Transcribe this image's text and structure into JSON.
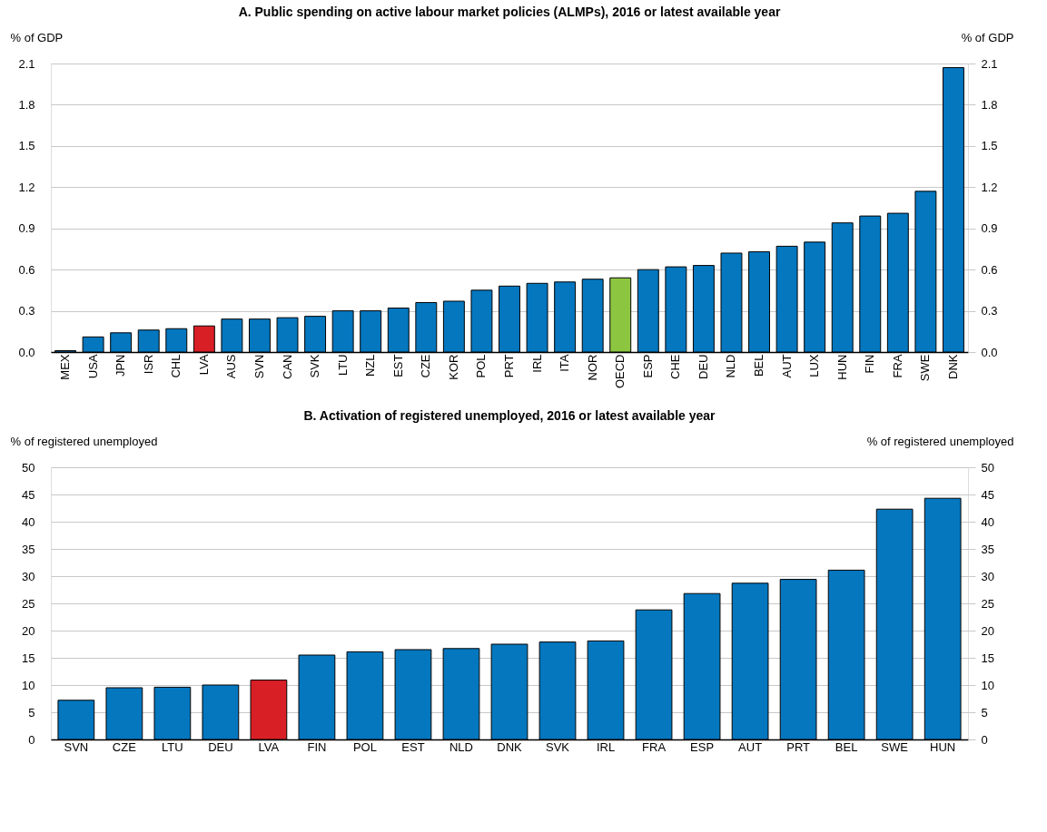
{
  "chart_data": [
    {
      "type": "bar",
      "title": "A. Public spending on active labour market policies (ALMPs), 2016 or latest available year",
      "ylabel": "% of GDP",
      "y2label": "% of GDP",
      "categories": [
        "MEX",
        "USA",
        "JPN",
        "ISR",
        "CHL",
        "LVA",
        "AUS",
        "SVN",
        "CAN",
        "SVK",
        "LTU",
        "NZL",
        "EST",
        "CZE",
        "KOR",
        "POL",
        "PRT",
        "IRL",
        "ITA",
        "NOR",
        "OECD",
        "ESP",
        "CHE",
        "DEU",
        "NLD",
        "BEL",
        "AUT",
        "LUX",
        "HUN",
        "FIN",
        "FRA",
        "SWE",
        "DNK"
      ],
      "values": [
        0.01,
        0.11,
        0.14,
        0.16,
        0.17,
        0.19,
        0.24,
        0.24,
        0.25,
        0.26,
        0.3,
        0.3,
        0.32,
        0.36,
        0.37,
        0.45,
        0.48,
        0.5,
        0.51,
        0.53,
        0.54,
        0.6,
        0.62,
        0.63,
        0.72,
        0.73,
        0.77,
        0.8,
        0.94,
        0.99,
        1.01,
        1.17,
        2.07
      ],
      "colors": [
        "#0477bf",
        "#0477bf",
        "#0477bf",
        "#0477bf",
        "#0477bf",
        "#d91f26",
        "#0477bf",
        "#0477bf",
        "#0477bf",
        "#0477bf",
        "#0477bf",
        "#0477bf",
        "#0477bf",
        "#0477bf",
        "#0477bf",
        "#0477bf",
        "#0477bf",
        "#0477bf",
        "#0477bf",
        "#0477bf",
        "#8cc641",
        "#0477bf",
        "#0477bf",
        "#0477bf",
        "#0477bf",
        "#0477bf",
        "#0477bf",
        "#0477bf",
        "#0477bf",
        "#0477bf",
        "#0477bf",
        "#0477bf",
        "#0477bf"
      ],
      "ylim": [
        0,
        2.1
      ],
      "yticks": [
        {
          "value": 0,
          "label": "0.0"
        },
        {
          "value": 0.3,
          "label": "0.3"
        },
        {
          "value": 0.6,
          "label": "0.6"
        },
        {
          "value": 0.9,
          "label": "0.9"
        },
        {
          "value": 1.2,
          "label": "1.2"
        },
        {
          "value": 1.5,
          "label": "1.5"
        },
        {
          "value": 1.8,
          "label": "1.8"
        },
        {
          "value": 2.1,
          "label": "2.1"
        }
      ],
      "y2lim": [
        0,
        2.1
      ],
      "y2ticks": [
        {
          "value": 0,
          "label": "0.0"
        },
        {
          "value": 0.3,
          "label": "0.3"
        },
        {
          "value": 0.6,
          "label": "0.6"
        },
        {
          "value": 0.9,
          "label": "0.9"
        },
        {
          "value": 1.2,
          "label": "1.2"
        },
        {
          "value": 1.5,
          "label": "1.5"
        },
        {
          "value": 1.8,
          "label": "1.8"
        },
        {
          "value": 2.1,
          "label": "2.1"
        }
      ],
      "grid": "y"
    },
    {
      "type": "bar",
      "title": "B. Activation of registered unemployed, 2016 or latest available year",
      "ylabel": "% of registered unemployed",
      "y2label": "% of registered unemployed",
      "categories": [
        "SVN",
        "CZE",
        "LTU",
        "DEU",
        "LVA",
        "FIN",
        "POL",
        "EST",
        "NLD",
        "DNK",
        "SVK",
        "IRL",
        "FRA",
        "ESP",
        "AUT",
        "PRT",
        "BEL",
        "SWE",
        "HUN"
      ],
      "values": [
        7.2,
        9.5,
        9.6,
        10.0,
        10.9,
        15.5,
        16.1,
        16.5,
        16.7,
        17.5,
        17.9,
        18.1,
        23.8,
        26.8,
        28.7,
        29.4,
        31.1,
        42.3,
        44.3
      ],
      "colors": [
        "#0477bf",
        "#0477bf",
        "#0477bf",
        "#0477bf",
        "#d91f26",
        "#0477bf",
        "#0477bf",
        "#0477bf",
        "#0477bf",
        "#0477bf",
        "#0477bf",
        "#0477bf",
        "#0477bf",
        "#0477bf",
        "#0477bf",
        "#0477bf",
        "#0477bf",
        "#0477bf",
        "#0477bf"
      ],
      "ylim": [
        0,
        50
      ],
      "yticks": [
        0,
        5,
        10,
        15,
        20,
        25,
        30,
        35,
        40,
        45,
        50
      ],
      "y2lim": [
        0,
        50
      ],
      "y2ticks": [
        0,
        5,
        10,
        15,
        20,
        25,
        30,
        35,
        40,
        45,
        50
      ],
      "grid": "y"
    }
  ]
}
